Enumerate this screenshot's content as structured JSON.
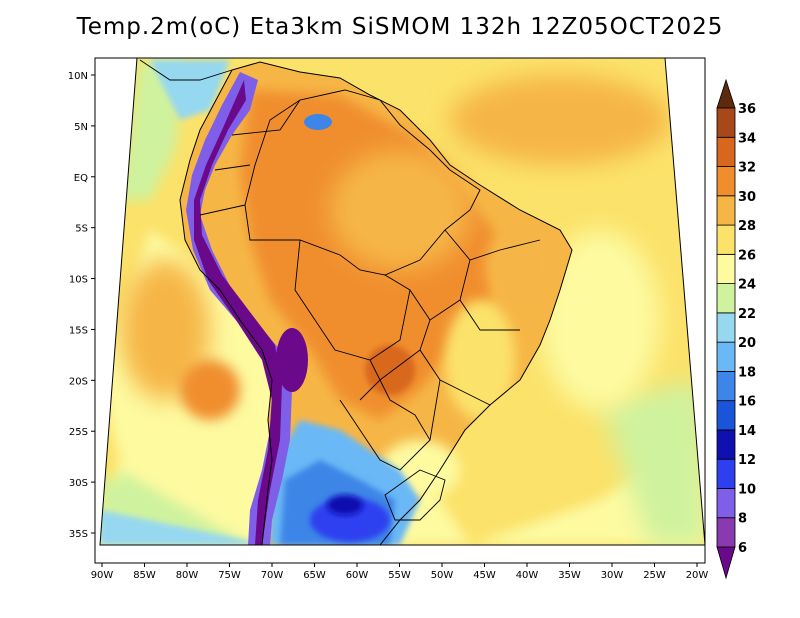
{
  "title": "Temp.2m(oC) Eta3km SiSMOM 132h 12Z05OCT2025",
  "map": {
    "lon_ticks": [
      "90W",
      "85W",
      "80W",
      "75W",
      "70W",
      "65W",
      "60W",
      "55W",
      "50W",
      "45W",
      "40W",
      "35W",
      "30W",
      "25W",
      "20W"
    ],
    "lat_ticks": [
      "10N",
      "5N",
      "EQ",
      "5S",
      "10S",
      "15S",
      "20S",
      "25S",
      "30S",
      "35S"
    ]
  },
  "colorbar": {
    "levels": [
      "6",
      "8",
      "10",
      "12",
      "14",
      "16",
      "18",
      "20",
      "22",
      "24",
      "26",
      "28",
      "30",
      "32",
      "34",
      "36"
    ],
    "colors": [
      "#6a0a8a",
      "#8a3ab0",
      "#7f5fe8",
      "#2e3ff0",
      "#1010b0",
      "#1a54d8",
      "#3d86e8",
      "#6ab8f5",
      "#96d8f0",
      "#cff29e",
      "#fdfaa0",
      "#fbe26a",
      "#f6b646",
      "#f08e2e",
      "#d8671e",
      "#a8481a",
      "#5e2a0c"
    ]
  }
}
